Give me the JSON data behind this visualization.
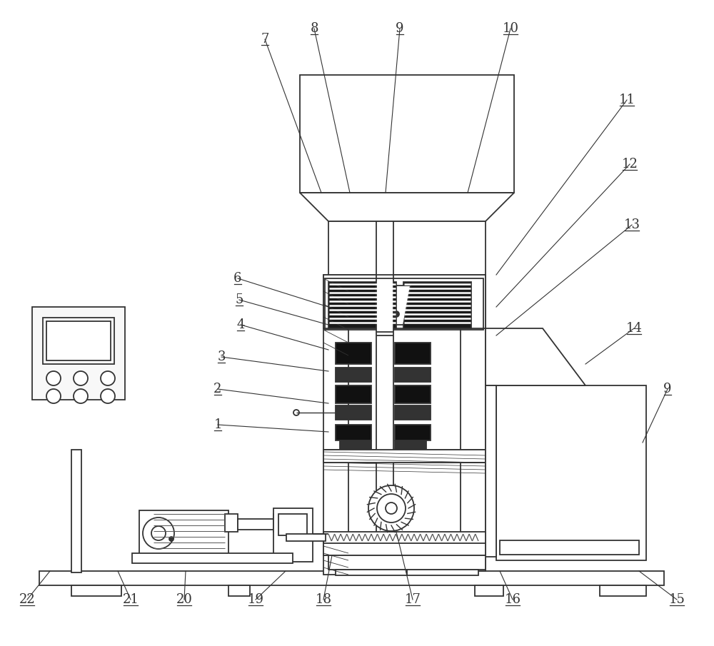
{
  "bg_color": "#ffffff",
  "lc": "#333333",
  "lw": 1.3,
  "figsize": [
    10.0,
    9.05
  ],
  "dpi": 100
}
